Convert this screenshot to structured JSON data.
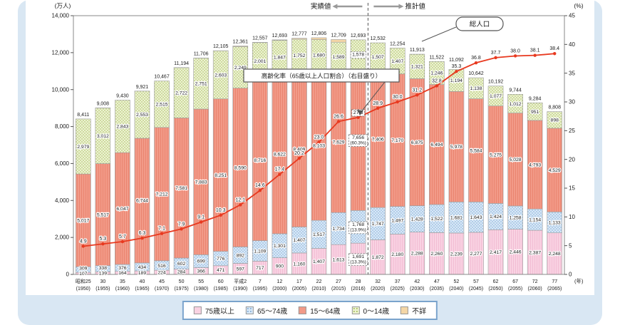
{
  "legend": [
    {
      "key": "75plus",
      "label": "75歳以上",
      "color": "#f9d2e2"
    },
    {
      "key": "65to74",
      "label": "65～74歳",
      "color": "#d8e8f7",
      "dot": "#7ba6d2"
    },
    {
      "key": "15to64",
      "label": "15～64歳",
      "color": "#f29a88"
    },
    {
      "key": "0to14",
      "label": "0～14歳",
      "color": "#edf2d2",
      "dot": "#9fb953"
    },
    {
      "key": "unknown",
      "label": "不詳",
      "color": "#f4d6a6"
    }
  ],
  "chart_data": {
    "type": "bar",
    "subtype": "stacked-bars-with-line",
    "unit_left": "(万人)",
    "unit_right": "(%)",
    "unit_year": "(年)",
    "header_actual": "実績値",
    "header_projected": "推計値",
    "callout_total": "総人口",
    "rate_annotation": "高齢化率（65歳以上人口割合）（右目盛り）",
    "categories_era": [
      "昭和25",
      "30",
      "35",
      "40",
      "45",
      "50",
      "55",
      "60",
      "平成2",
      "7",
      "12",
      "17",
      "22",
      "27",
      "28",
      "32",
      "37",
      "42",
      "47",
      "52",
      "57",
      "62",
      "67",
      "72",
      "77"
    ],
    "categories_west": [
      "(1950)",
      "(1955)",
      "(1960)",
      "(1965)",
      "(1970)",
      "(1975)",
      "(1980)",
      "(1985)",
      "(1990)",
      "(1995)",
      "(2000)",
      "(2005)",
      "(2010)",
      "(2015)",
      "(2016)",
      "(2020)",
      "(2025)",
      "(2030)",
      "(2035)",
      "(2040)",
      "(2045)",
      "(2050)",
      "(2055)",
      "(2060)",
      "(2065)"
    ],
    "series": [
      {
        "key": "75plus",
        "name": "75歳以上",
        "values": [
          107,
          139,
          164,
          189,
          224,
          284,
          366,
          471,
          597,
          717,
          900,
          1160,
          1407,
          1613,
          1691,
          1872,
          2180,
          2288,
          2260,
          2239,
          2277,
          2417,
          2446,
          2387,
          2248
        ]
      },
      {
        "key": "65to74",
        "name": "65～74歳",
        "values": [
          309,
          338,
          376,
          434,
          516,
          602,
          699,
          776,
          892,
          1109,
          1301,
          1407,
          1517,
          1734,
          1768,
          1747,
          1497,
          1428,
          1522,
          1681,
          1643,
          1424,
          1258,
          1154,
          1133
        ]
      },
      {
        "key": "15to64",
        "name": "15～64歳",
        "values": [
          5017,
          5517,
          6047,
          6744,
          7212,
          7581,
          7883,
          8251,
          8590,
          8716,
          8622,
          8409,
          8103,
          7629,
          7656,
          7406,
          7170,
          6875,
          6494,
          5978,
          5584,
          5275,
          5028,
          4793,
          4529
        ]
      },
      {
        "key": "0to14",
        "name": "0～14歳",
        "values": [
          2979,
          3012,
          2843,
          2553,
          2515,
          2722,
          2751,
          2603,
          2249,
          2001,
          1847,
          1752,
          1680,
          1589,
          1578,
          1507,
          1407,
          1321,
          1246,
          1194,
          1138,
          1077,
          1012,
          951,
          898
        ]
      },
      {
        "key": "unknown",
        "name": "不詳",
        "values": [
          0,
          2,
          0,
          1,
          0,
          5,
          7,
          4,
          33,
          14,
          23,
          49,
          99,
          144,
          0,
          0,
          0,
          1,
          0,
          0,
          0,
          0,
          0,
          0,
          0
        ]
      }
    ],
    "totals": [
      8411,
      9008,
      9430,
      9921,
      10467,
      11194,
      11706,
      12105,
      12361,
      12557,
      12693,
      12777,
      12806,
      12709,
      12693,
      12532,
      12254,
      11913,
      11522,
      11092,
      10642,
      10192,
      9744,
      9284,
      8808
    ],
    "line": {
      "name": "高齢化率（65歳以上人口割合）",
      "axis": "right",
      "color": "#e8391f",
      "values": [
        4.9,
        5.3,
        5.7,
        6.3,
        7.1,
        7.9,
        9.1,
        10.3,
        12.1,
        14.6,
        17.4,
        20.2,
        23.0,
        26.6,
        27.3,
        28.9,
        30.0,
        31.2,
        32.8,
        35.3,
        36.8,
        37.7,
        38.0,
        38.1,
        38.4
      ]
    },
    "pct_2016": [
      "(13.3%)",
      "(13.9%)",
      "(60.3%)",
      null,
      null
    ],
    "left_axis": {
      "unit": "万人",
      "min": 0,
      "max": 14000,
      "ticks": [
        0,
        2000,
        4000,
        6000,
        8000,
        10000,
        12000,
        14000
      ]
    },
    "right_axis": {
      "unit": "%",
      "min": 0,
      "max": 45,
      "ticks": [
        0,
        5,
        10,
        15,
        20,
        25,
        30,
        35,
        40,
        45
      ]
    },
    "divider_index": 15,
    "highlight_index": 14
  }
}
